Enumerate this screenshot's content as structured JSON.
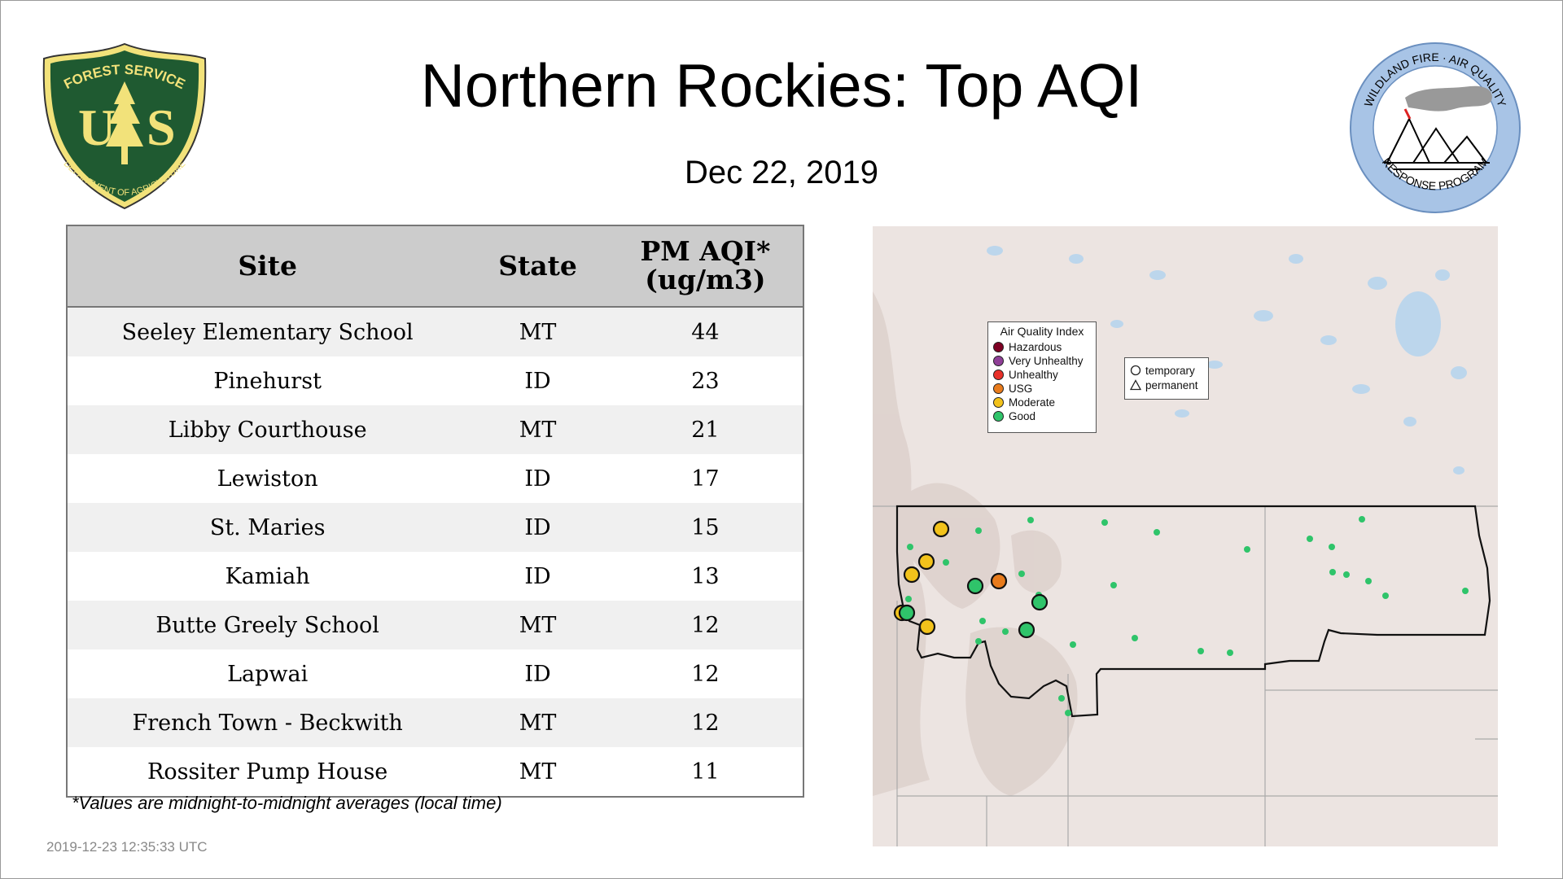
{
  "title": "Northern Rockies: Top AQI",
  "subtitle": "Dec 22, 2019",
  "logos": {
    "usfs": {
      "top_text": "FOREST SERVICE",
      "bottom_text": "DEPARTMENT OF AGRICULTURE",
      "letter_left": "U",
      "letter_right": "S"
    },
    "wfaq": {
      "top_text": "WILDLAND FIRE · AIR QUALITY",
      "bottom_text": "RESPONSE PROGRAM"
    }
  },
  "table": {
    "headers": {
      "site": "Site",
      "state": "State",
      "aqi_line1": "PM AQI*",
      "aqi_line2": "(ug/m3)"
    },
    "rows": [
      {
        "site": "Seeley Elementary School",
        "state": "MT",
        "aqi": "44"
      },
      {
        "site": "Pinehurst",
        "state": "ID",
        "aqi": "23"
      },
      {
        "site": "Libby Courthouse",
        "state": "MT",
        "aqi": "21"
      },
      {
        "site": "Lewiston",
        "state": "ID",
        "aqi": "17"
      },
      {
        "site": "St. Maries",
        "state": "ID",
        "aqi": "15"
      },
      {
        "site": "Kamiah",
        "state": "ID",
        "aqi": "13"
      },
      {
        "site": "Butte Greely School",
        "state": "MT",
        "aqi": "12"
      },
      {
        "site": "Lapwai",
        "state": "ID",
        "aqi": "12"
      },
      {
        "site": "French Town - Beckwith",
        "state": "MT",
        "aqi": "12"
      },
      {
        "site": "Rossiter Pump House",
        "state": "MT",
        "aqi": "11"
      }
    ]
  },
  "footnote": "*Values are midnight-to-midnight averages (local time)",
  "timestamp": "2019-12-23 12:35:33 UTC",
  "map": {
    "legend": {
      "title": "Air Quality Index",
      "items": [
        {
          "label": "Hazardous",
          "color": "#7e0023"
        },
        {
          "label": "Very Unhealthy",
          "color": "#8f3f97"
        },
        {
          "label": "Unhealthy",
          "color": "#e8312a"
        },
        {
          "label": "USG",
          "color": "#e87b1c"
        },
        {
          "label": "Moderate",
          "color": "#f2c21b"
        },
        {
          "label": "Good",
          "color": "#2fc46a"
        }
      ]
    },
    "shape_legend": {
      "items": [
        {
          "label": "temporary",
          "shape": "circle"
        },
        {
          "label": "permanent",
          "shape": "triangle"
        }
      ]
    }
  }
}
